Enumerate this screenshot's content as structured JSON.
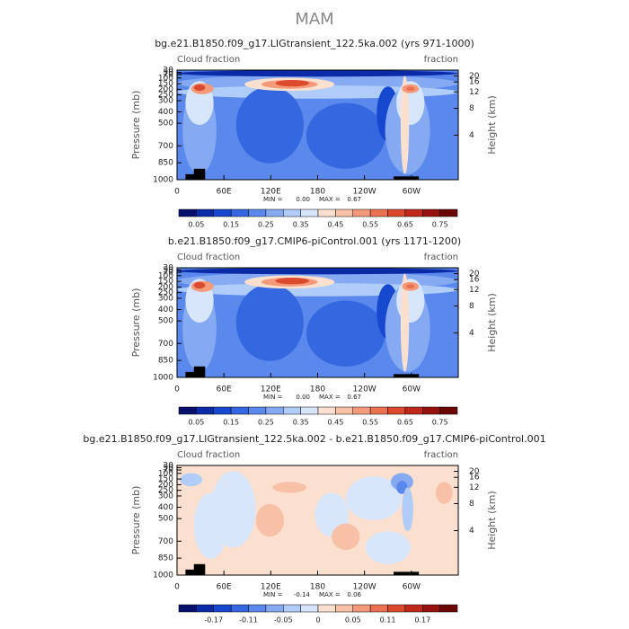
{
  "title": "MAM",
  "panels": [
    {
      "title": "bg.e21.B1850.f09_g17.LIGtransient_122.5ka.002 (yrs 971-1000)",
      "left_label": "Cloud fraction",
      "right_label": "fraction",
      "y_label": "Pressure (mb)",
      "y2_label": "Height (km)",
      "xticks": [
        "0",
        "60E",
        "120E",
        "180",
        "120W",
        "60W"
      ],
      "yticks": [
        30,
        50,
        70,
        100,
        150,
        200,
        250,
        300,
        400,
        500,
        700,
        850,
        1000
      ],
      "y2ticks": [
        20,
        16,
        12,
        8,
        4
      ],
      "min_label": "MIN =",
      "min": "0.00",
      "max_label": "MAX =",
      "max": "0.67",
      "colorbar_labels": [
        "0.05",
        "0.15",
        "0.25",
        "0.35",
        "0.45",
        "0.55",
        "0.65",
        "0.75"
      ],
      "style": "full"
    },
    {
      "title": "b.e21.B1850.f09_g17.CMIP6-piControl.001 (yrs 1171-1200)",
      "left_label": "Cloud fraction",
      "right_label": "fraction",
      "y_label": "Pressure (mb)",
      "y2_label": "Height (km)",
      "xticks": [
        "0",
        "60E",
        "120E",
        "180",
        "120W",
        "60W"
      ],
      "yticks": [
        30,
        50,
        70,
        100,
        150,
        200,
        250,
        300,
        400,
        500,
        700,
        850,
        1000
      ],
      "y2ticks": [
        20,
        16,
        12,
        8,
        4
      ],
      "min_label": "MIN =",
      "min": "0.00",
      "max_label": "MAX =",
      "max": "0.67",
      "colorbar_labels": [
        "0.05",
        "0.15",
        "0.25",
        "0.35",
        "0.45",
        "0.55",
        "0.65",
        "0.75"
      ],
      "style": "full"
    },
    {
      "title": "bg.e21.B1850.f09_g17.LIGtransient_122.5ka.002 - b.e21.B1850.f09_g17.CMIP6-piControl.001",
      "left_label": "Cloud fraction",
      "right_label": "fraction",
      "y_label": "Pressure (mb)",
      "y2_label": "Height (km)",
      "xticks": [
        "0",
        "60E",
        "120E",
        "180",
        "120W",
        "60W"
      ],
      "yticks": [
        30,
        50,
        70,
        100,
        150,
        200,
        250,
        300,
        400,
        500,
        700,
        850,
        1000
      ],
      "y2ticks": [
        20,
        16,
        12,
        8,
        4
      ],
      "min_label": "MIN =",
      "min": "-0.14",
      "max_label": "MAX =",
      "max": "0.06",
      "colorbar_labels": [
        "-0.17",
        "-0.11",
        "-0.05",
        "0",
        "0.05",
        "0.11",
        "0.17"
      ],
      "style": "diff"
    }
  ],
  "colorbar_colors": [
    "#08106e",
    "#0a2aa8",
    "#1648d0",
    "#3467e0",
    "#5a88ec",
    "#86aaf2",
    "#b0ccf8",
    "#d8e6fb",
    "#fbe0d0",
    "#f8c0a6",
    "#f49a7a",
    "#ec7150",
    "#dc4a2e",
    "#c0281a",
    "#96120e",
    "#6a0606"
  ]
}
